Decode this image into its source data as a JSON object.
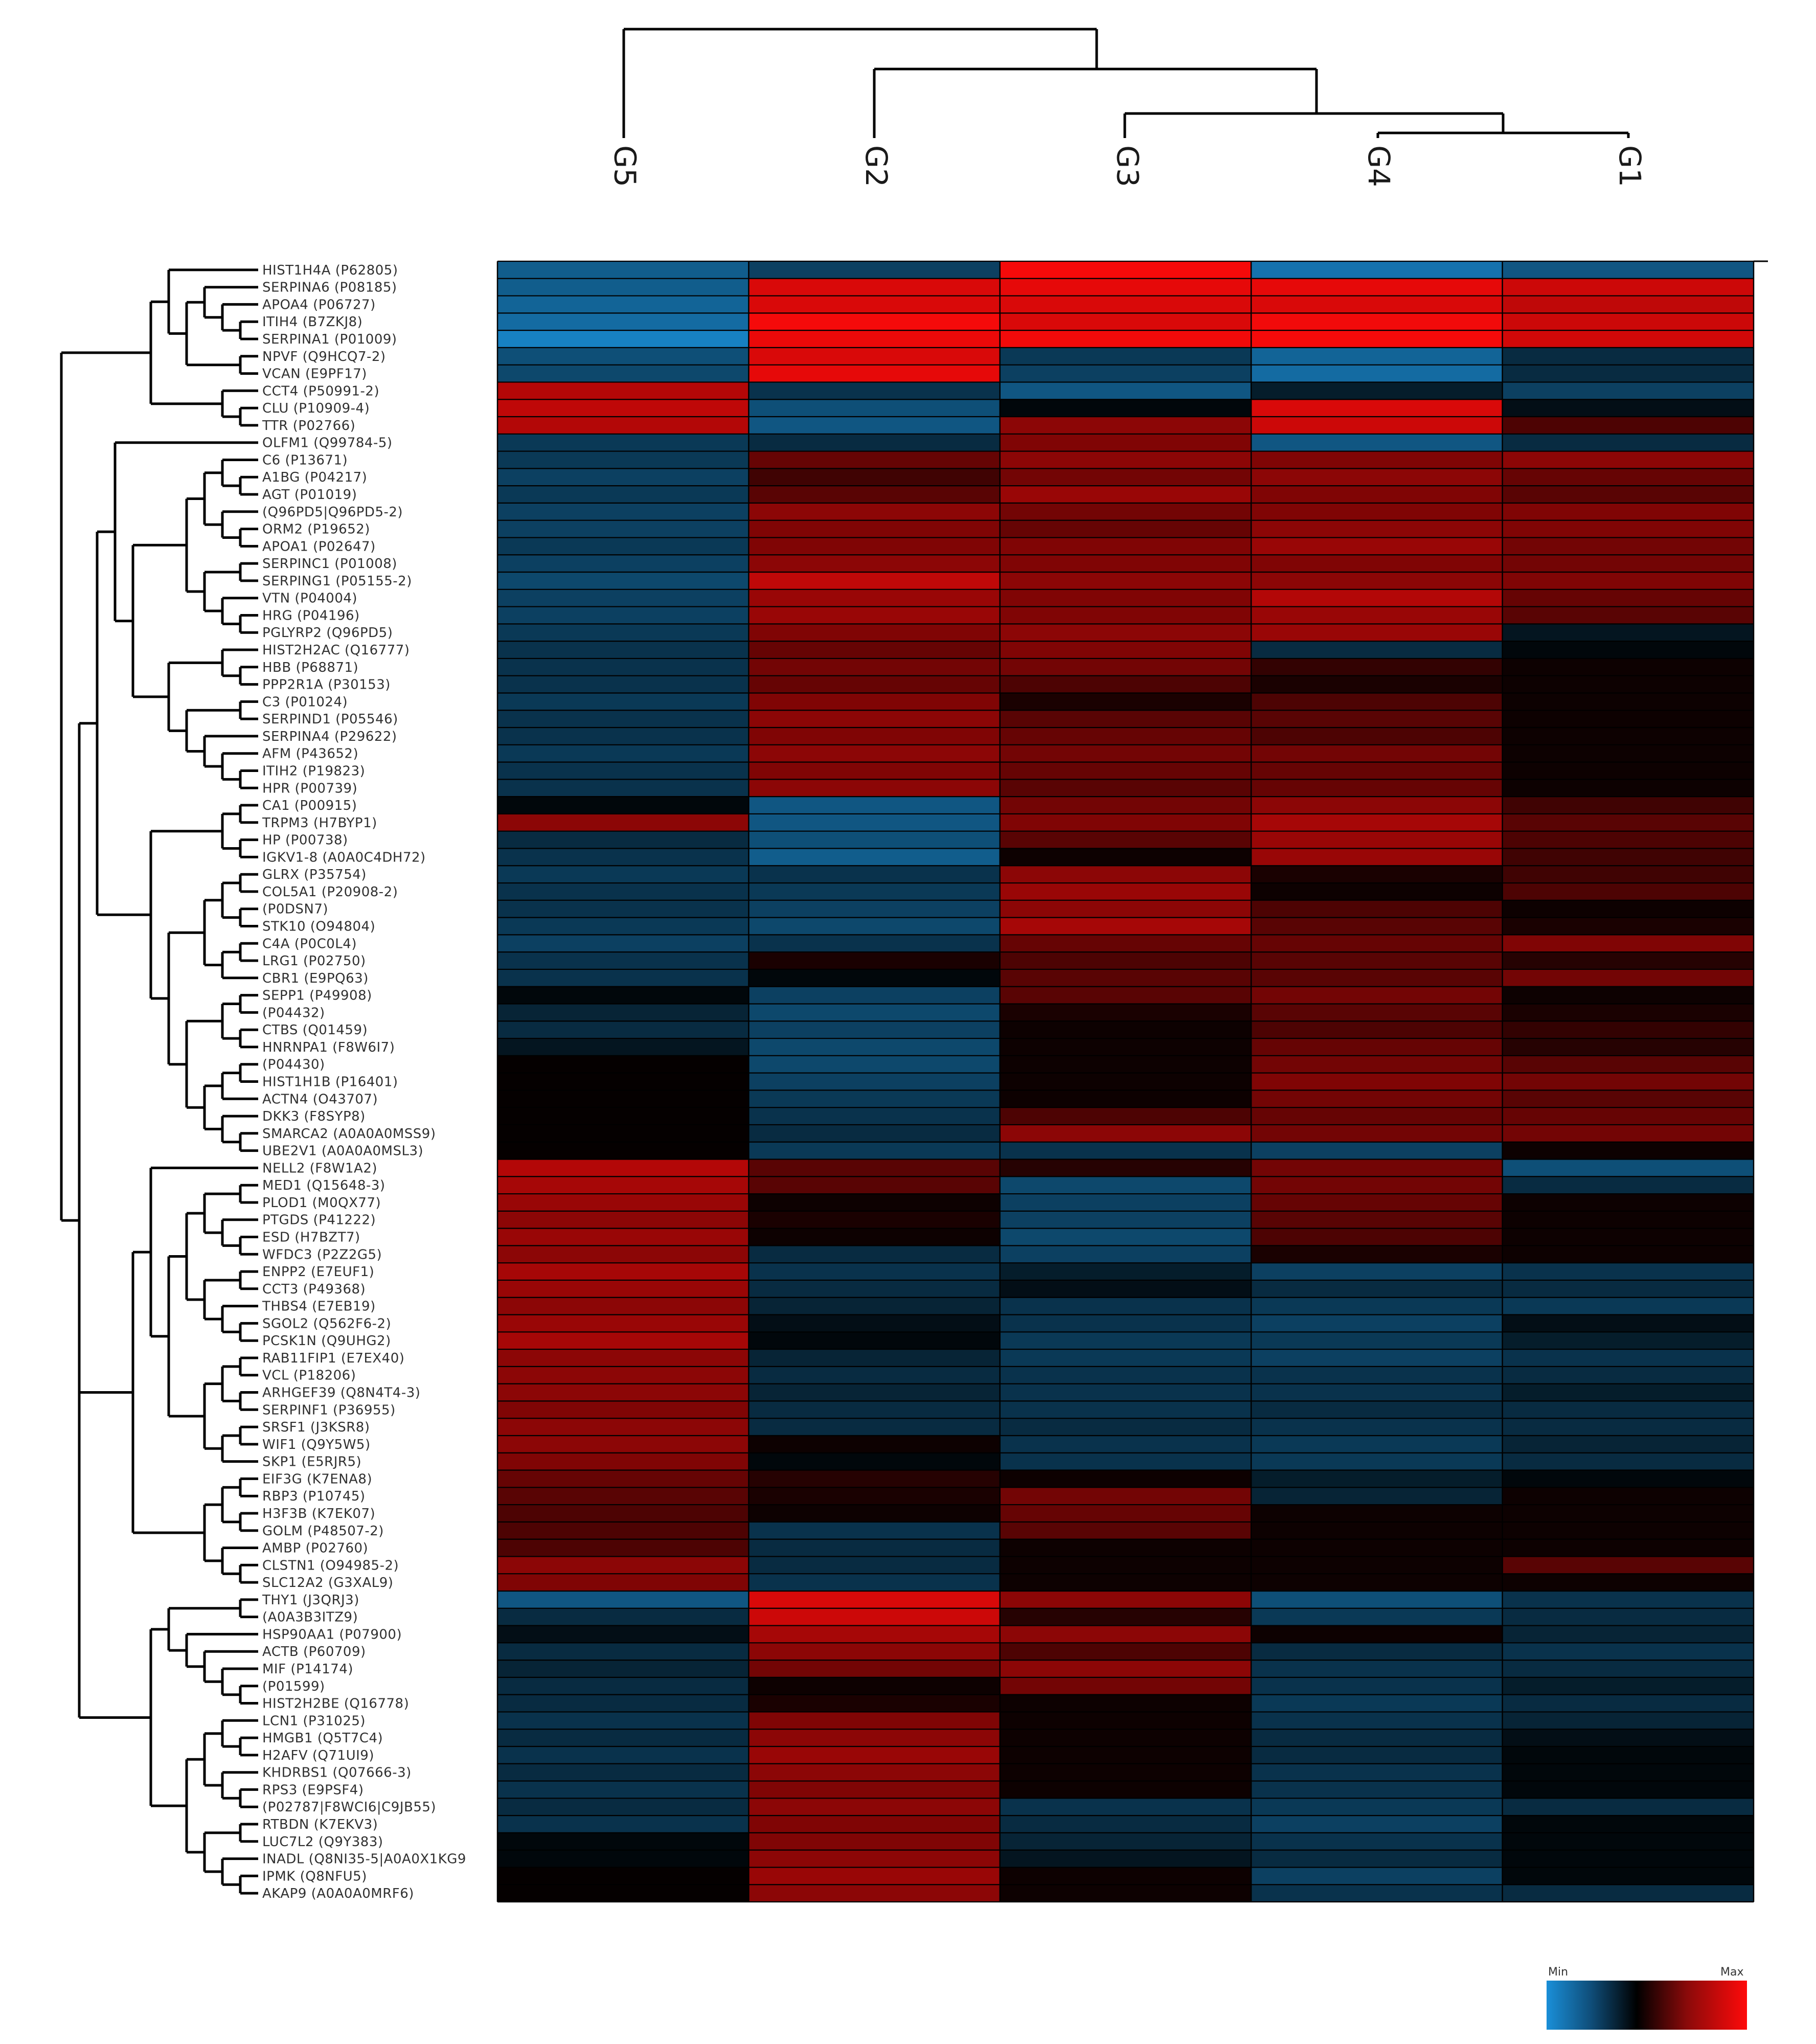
{
  "chart_data": {
    "type": "heatmap",
    "columns": [
      "G5",
      "G2",
      "G3",
      "G4",
      "G1"
    ],
    "rows": [
      "HIST1H4A (P62805)",
      "SERPINA6 (P08185)",
      "APOA4 (P06727)",
      "ITIH4 (B7ZKJ8)",
      "SERPINA1 (P01009)",
      "NPVF (Q9HCQ7-2)",
      "VCAN (E9PF17)",
      "CCT4 (P50991-2)",
      "CLU (P10909-4)",
      "TTR (P02766)",
      "OLFM1 (Q99784-5)",
      "C6 (P13671)",
      "A1BG (P04217)",
      "AGT (P01019)",
      "(Q96PD5|Q96PD5-2)",
      "ORM2 (P19652)",
      "APOA1 (P02647)",
      "SERPINC1 (P01008)",
      "SERPING1 (P05155-2)",
      "VTN (P04004)",
      "HRG (P04196)",
      "PGLYRP2 (Q96PD5)",
      "HIST2H2AC (Q16777)",
      "HBB (P68871)",
      "PPP2R1A (P30153)",
      "C3 (P01024)",
      "SERPIND1 (P05546)",
      "SERPINA4 (P29622)",
      "AFM (P43652)",
      "ITIH2 (P19823)",
      "HPR (P00739)",
      "CA1 (P00915)",
      "TRPM3 (H7BYP1)",
      "HP (P00738)",
      "IGKV1-8 (A0A0C4DH72)",
      "GLRX (P35754)",
      "COL5A1 (P20908-2)",
      "(P0DSN7)",
      "STK10 (O94804)",
      "C4A (P0C0L4)",
      "LRG1 (P02750)",
      "CBR1 (E9PQ63)",
      "SEPP1 (P49908)",
      "(P04432)",
      "CTBS (Q01459)",
      "HNRNPA1 (F8W6I7)",
      "(P04430)",
      "HIST1H1B (P16401)",
      "ACTN4 (O43707)",
      "DKK3 (F8SYP8)",
      "SMARCA2 (A0A0A0MSS9)",
      "UBE2V1 (A0A0A0MSL3)",
      "NELL2 (F8W1A2)",
      "MED1 (Q15648-3)",
      "PLOD1 (M0QX77)",
      "PTGDS (P41222)",
      "ESD (H7BZT7)",
      "WFDC3 (P2Z2G5)",
      "ENPP2 (E7EUF1)",
      "CCT3 (P49368)",
      "THBS4 (E7EB19)",
      "SGOL2 (Q562F6-2)",
      "PCSK1N (Q9UHG2)",
      "RAB11FIP1 (E7EX40)",
      "VCL (P18206)",
      "ARHGEF39 (Q8N4T4-3)",
      "SERPINF1 (P36955)",
      "SRSF1 (J3KSR8)",
      "WIF1 (Q9Y5W5)",
      "SKP1 (E5RJR5)",
      "EIF3G (K7ENA8)",
      "RBP3 (P10745)",
      "H3F3B (K7EK07)",
      "GOLM (P48507-2)",
      "AMBP (P02760)",
      "CLSTN1 (O94985-2)",
      "SLC12A2 (G3XAL9)",
      "THY1 (J3QRJ3)",
      "(A0A3B3ITZ9)",
      "HSP90AA1 (P07900)",
      "ACTB (P60709)",
      "MIF (P14174)",
      "(P01599)",
      "HIST2H2BE (Q16778)",
      "LCN1 (P31025)",
      "HMGB1 (Q5T7C4)",
      "H2AFV (Q71UI9)",
      "KHDRBS1 (Q07666-3)",
      "RPS3 (E9PSF4)",
      "(P02787|F8WCI6|C9JB55)",
      "RTBDN (K7EKV3)",
      "LUC7L2 (Q9Y383)",
      "INADL (Q8NI35-5|A0A0X1KG9",
      "IPMK (Q8NFU5)",
      "AKAP9 (A0A0A0MRF6)"
    ],
    "values": [
      [
        -0.65,
        -0.45,
        0.96,
        -0.8,
        -0.6
      ],
      [
        -0.65,
        0.85,
        0.9,
        0.9,
        0.8
      ],
      [
        -0.7,
        0.85,
        0.85,
        0.85,
        0.75
      ],
      [
        -0.75,
        0.96,
        0.85,
        0.95,
        0.8
      ],
      [
        -0.9,
        0.92,
        0.95,
        0.96,
        0.82
      ],
      [
        -0.55,
        0.85,
        -0.4,
        -0.7,
        -0.3
      ],
      [
        -0.5,
        0.9,
        -0.45,
        -0.75,
        -0.3
      ],
      [
        0.7,
        -0.35,
        -0.6,
        -0.2,
        -0.45
      ],
      [
        0.75,
        -0.55,
        -0.05,
        0.85,
        -0.1
      ],
      [
        0.7,
        -0.6,
        0.55,
        0.8,
        0.3
      ],
      [
        -0.4,
        -0.3,
        0.5,
        -0.6,
        -0.3
      ],
      [
        -0.4,
        0.4,
        0.55,
        0.5,
        0.55
      ],
      [
        -0.45,
        0.25,
        0.45,
        0.55,
        0.4
      ],
      [
        -0.4,
        0.35,
        0.6,
        0.5,
        0.35
      ],
      [
        -0.45,
        0.55,
        0.45,
        0.5,
        0.5
      ],
      [
        -0.45,
        0.5,
        0.4,
        0.55,
        0.5
      ],
      [
        -0.4,
        0.5,
        0.5,
        0.6,
        0.45
      ],
      [
        -0.45,
        0.55,
        0.5,
        0.5,
        0.45
      ],
      [
        -0.5,
        0.75,
        0.55,
        0.55,
        0.5
      ],
      [
        -0.45,
        0.6,
        0.5,
        0.7,
        0.4
      ],
      [
        -0.45,
        0.6,
        0.5,
        0.6,
        0.35
      ],
      [
        -0.4,
        0.5,
        0.55,
        0.6,
        -0.15
      ],
      [
        -0.35,
        0.4,
        0.5,
        -0.3,
        -0.05
      ],
      [
        -0.35,
        0.45,
        0.45,
        0.2,
        0.05
      ],
      [
        -0.35,
        0.4,
        0.3,
        0.1,
        0.05
      ],
      [
        -0.4,
        0.5,
        0.1,
        0.3,
        0.05
      ],
      [
        -0.35,
        0.55,
        0.35,
        0.35,
        0.05
      ],
      [
        -0.35,
        0.5,
        0.4,
        0.3,
        0.05
      ],
      [
        -0.4,
        0.55,
        0.45,
        0.45,
        0.05
      ],
      [
        -0.35,
        0.5,
        0.4,
        0.4,
        0.05
      ],
      [
        -0.35,
        0.55,
        0.35,
        0.4,
        0.05
      ],
      [
        -0.05,
        -0.6,
        0.45,
        0.55,
        0.25
      ],
      [
        0.55,
        -0.6,
        0.5,
        0.65,
        0.35
      ],
      [
        -0.3,
        -0.55,
        0.35,
        0.6,
        0.3
      ],
      [
        -0.35,
        -0.65,
        0.05,
        0.6,
        0.25
      ],
      [
        -0.4,
        -0.35,
        0.55,
        0.1,
        0.25
      ],
      [
        -0.35,
        -0.4,
        0.6,
        0.05,
        0.3
      ],
      [
        -0.35,
        -0.45,
        0.55,
        0.3,
        0.05
      ],
      [
        -0.4,
        -0.5,
        0.65,
        0.35,
        0.1
      ],
      [
        -0.45,
        -0.35,
        0.4,
        0.4,
        0.5
      ],
      [
        -0.35,
        0.1,
        0.3,
        0.35,
        0.15
      ],
      [
        -0.35,
        -0.05,
        0.35,
        0.35,
        0.45
      ],
      [
        -0.05,
        -0.45,
        0.35,
        0.45,
        0.05
      ],
      [
        -0.25,
        -0.5,
        0.1,
        0.35,
        0.1
      ],
      [
        -0.3,
        -0.45,
        0.05,
        0.3,
        0.2
      ],
      [
        -0.15,
        -0.5,
        0.05,
        0.4,
        0.15
      ],
      [
        0.02,
        -0.5,
        0.05,
        0.45,
        0.35
      ],
      [
        0.02,
        -0.45,
        0.05,
        0.5,
        0.45
      ],
      [
        0.02,
        -0.4,
        0.05,
        0.45,
        0.35
      ],
      [
        0.02,
        -0.35,
        0.3,
        0.4,
        0.4
      ],
      [
        0.02,
        -0.3,
        0.55,
        0.45,
        0.45
      ],
      [
        0.02,
        -0.4,
        -0.35,
        -0.45,
        0.05
      ],
      [
        0.7,
        0.35,
        0.15,
        0.45,
        -0.55
      ],
      [
        0.65,
        0.35,
        -0.5,
        0.45,
        -0.3
      ],
      [
        0.6,
        0.05,
        -0.45,
        0.4,
        0.05
      ],
      [
        0.55,
        0.1,
        -0.45,
        0.35,
        0.05
      ],
      [
        0.6,
        0.05,
        -0.5,
        0.3,
        0.05
      ],
      [
        0.55,
        -0.3,
        -0.45,
        0.1,
        0.05
      ],
      [
        0.65,
        -0.35,
        -0.2,
        -0.45,
        -0.35
      ],
      [
        0.6,
        -0.3,
        -0.1,
        -0.3,
        -0.3
      ],
      [
        0.55,
        -0.25,
        -0.35,
        -0.4,
        -0.4
      ],
      [
        0.6,
        -0.1,
        -0.35,
        -0.45,
        -0.1
      ],
      [
        0.65,
        -0.05,
        -0.4,
        -0.4,
        -0.2
      ],
      [
        0.55,
        -0.25,
        -0.4,
        -0.45,
        -0.35
      ],
      [
        0.55,
        -0.3,
        -0.35,
        -0.35,
        -0.3
      ],
      [
        0.55,
        -0.25,
        -0.35,
        -0.35,
        -0.2
      ],
      [
        0.5,
        -0.3,
        -0.35,
        -0.3,
        -0.3
      ],
      [
        0.55,
        -0.3,
        -0.3,
        -0.35,
        -0.3
      ],
      [
        0.55,
        0.05,
        -0.35,
        -0.4,
        -0.25
      ],
      [
        0.5,
        -0.05,
        -0.35,
        -0.4,
        -0.3
      ],
      [
        0.4,
        0.15,
        0.05,
        -0.2,
        -0.05
      ],
      [
        0.35,
        0.1,
        0.45,
        -0.25,
        0.05
      ],
      [
        0.3,
        0.05,
        0.4,
        0.05,
        0.05
      ],
      [
        0.3,
        -0.35,
        0.35,
        0.05,
        0.05
      ],
      [
        0.3,
        -0.3,
        0.05,
        0.05,
        0.05
      ],
      [
        0.55,
        -0.3,
        0.05,
        0.05,
        0.35
      ],
      [
        0.5,
        -0.35,
        0.05,
        0.05,
        0.05
      ],
      [
        -0.6,
        0.85,
        0.55,
        -0.55,
        -0.35
      ],
      [
        -0.3,
        0.8,
        0.15,
        -0.4,
        -0.3
      ],
      [
        -0.1,
        0.65,
        0.55,
        0.05,
        -0.25
      ],
      [
        -0.3,
        0.55,
        0.3,
        -0.3,
        -0.35
      ],
      [
        -0.25,
        0.45,
        0.55,
        -0.35,
        -0.3
      ],
      [
        -0.3,
        0.05,
        0.45,
        -0.35,
        -0.2
      ],
      [
        -0.3,
        0.1,
        0.05,
        -0.4,
        -0.3
      ],
      [
        -0.35,
        0.5,
        0.05,
        -0.35,
        -0.25
      ],
      [
        -0.3,
        0.55,
        0.05,
        -0.3,
        -0.1
      ],
      [
        -0.35,
        0.6,
        0.05,
        -0.3,
        -0.05
      ],
      [
        -0.3,
        0.55,
        0.05,
        -0.35,
        -0.05
      ],
      [
        -0.35,
        0.5,
        0.05,
        -0.35,
        -0.05
      ],
      [
        -0.3,
        0.55,
        -0.35,
        -0.4,
        -0.3
      ],
      [
        -0.35,
        0.5,
        -0.3,
        -0.45,
        -0.05
      ],
      [
        -0.05,
        0.5,
        -0.25,
        -0.35,
        -0.05
      ],
      [
        -0.05,
        0.55,
        -0.15,
        -0.3,
        -0.05
      ],
      [
        0.02,
        0.6,
        0.05,
        -0.45,
        -0.05
      ],
      [
        0.02,
        0.55,
        0.05,
        -0.35,
        -0.3
      ]
    ],
    "color_scale": {
      "min": -1,
      "max": 1,
      "min_color": "#1a8fd8",
      "mid_color": "#000000",
      "max_color": "#ff0a0a"
    },
    "legend": {
      "min_label": "Min",
      "max_label": "Max",
      "position": "bottom-right"
    }
  }
}
